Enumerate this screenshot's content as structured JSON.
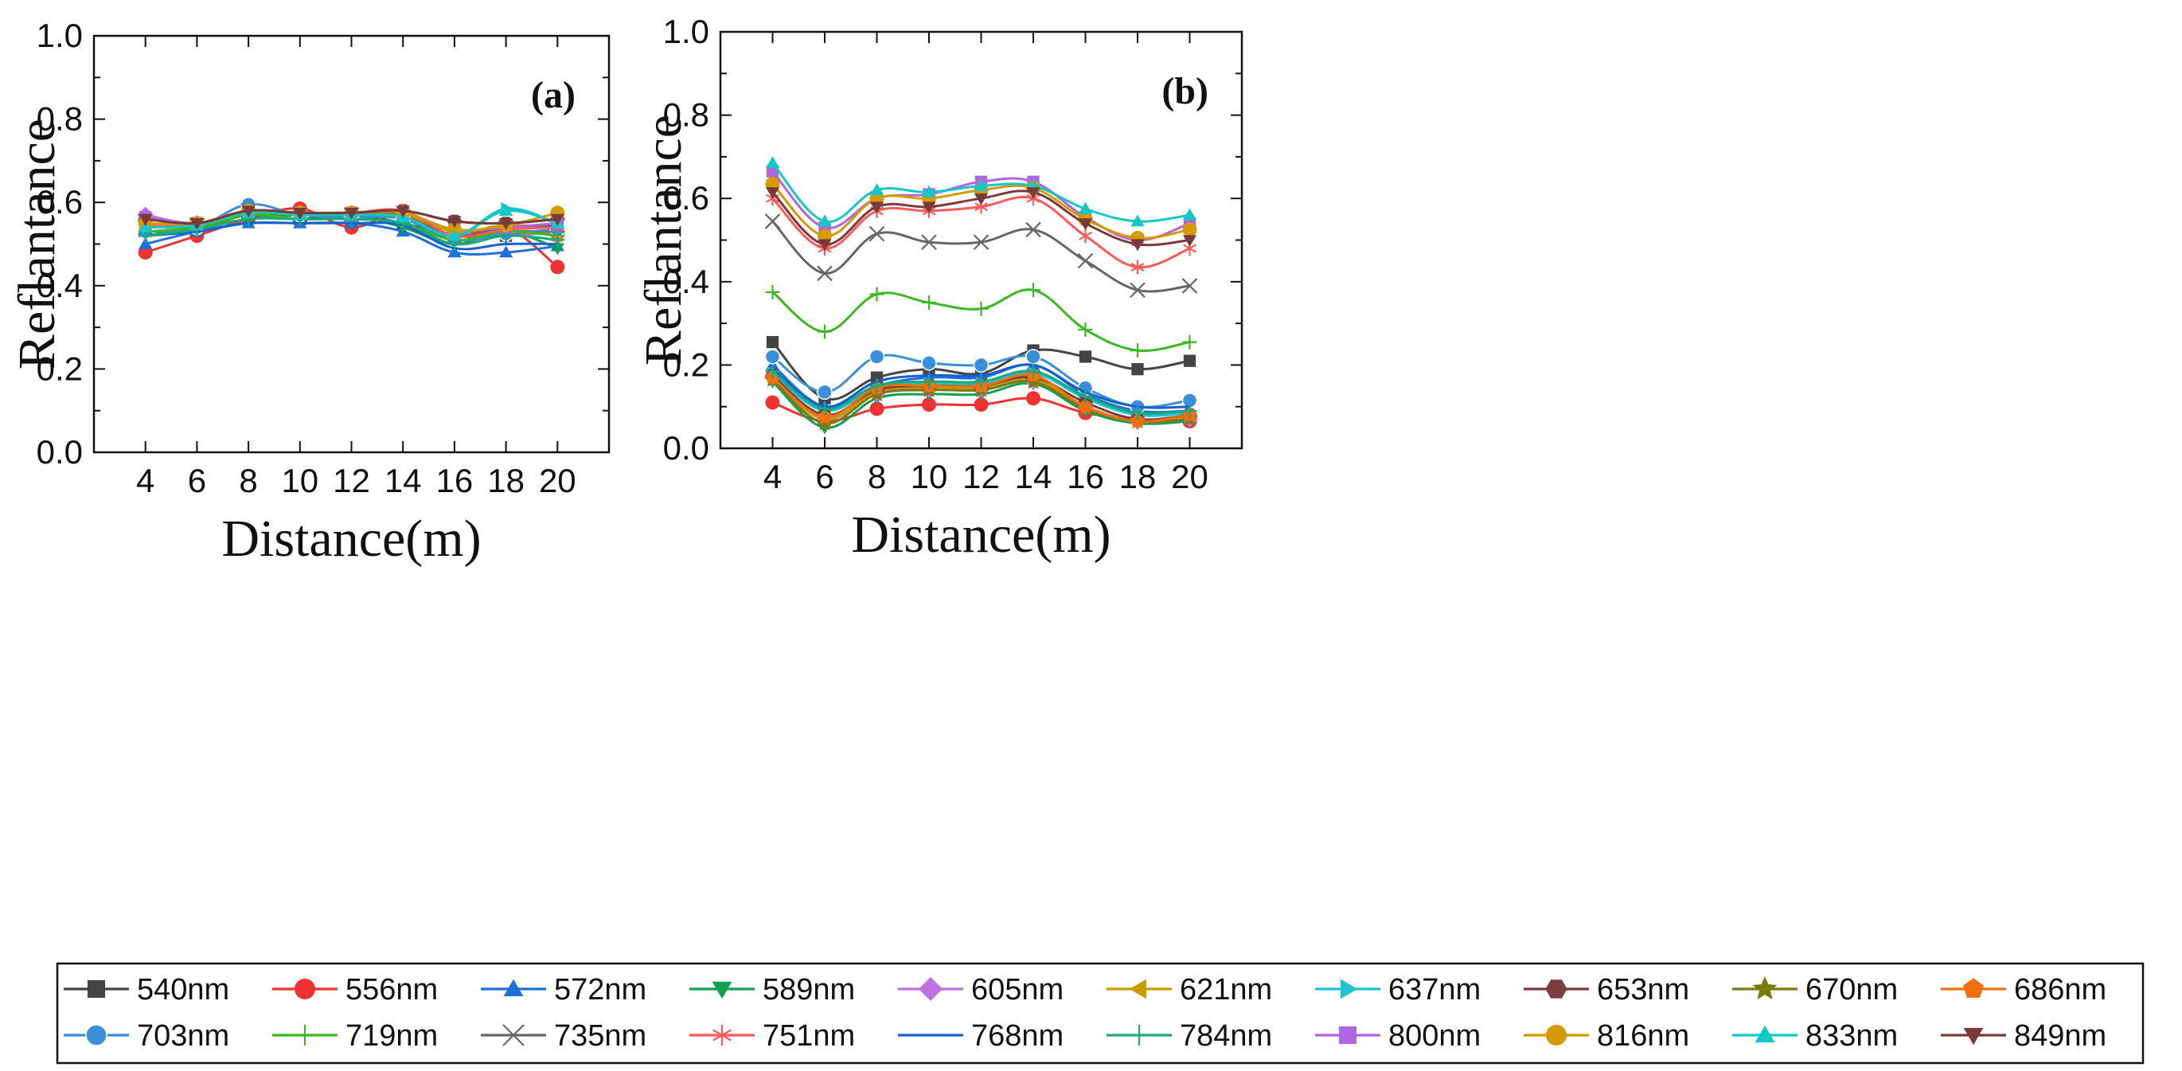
{
  "figure": {
    "legend_entries": [
      "540nm",
      "556nm",
      "572nm",
      "589nm",
      "605nm",
      "621nm",
      "637nm",
      "653nm",
      "670nm",
      "686nm",
      "703nm",
      "719nm",
      "735nm",
      "751nm",
      "768nm",
      "784nm",
      "800nm",
      "816nm",
      "833nm",
      "849nm"
    ]
  },
  "chart_data": [
    {
      "type": "line",
      "panel_label": "(a)",
      "xlabel": "Distance(m)",
      "ylabel": "Reflantance",
      "xlim": [
        2,
        22
      ],
      "ylim": [
        0,
        1
      ],
      "x": [
        4,
        6,
        8,
        10,
        12,
        14,
        16,
        18,
        20
      ],
      "x_ticks": [
        4,
        6,
        8,
        10,
        12,
        14,
        16,
        18,
        20
      ],
      "y_ticks": [
        0.0,
        0.2,
        0.4,
        0.6,
        0.8,
        1.0
      ],
      "y_tick_labels": [
        "0.0",
        "0.2",
        "0.4",
        "0.6",
        "0.8",
        "1.0"
      ],
      "series": [
        {
          "name": "540nm",
          "color": "#444444",
          "marker": "square",
          "values": [
            0.53,
            0.54,
            0.57,
            0.56,
            0.57,
            0.55,
            0.52,
            0.52,
            0.53
          ]
        },
        {
          "name": "556nm",
          "color": "#ef3333",
          "marker": "circle",
          "values": [
            0.48,
            0.52,
            0.56,
            0.585,
            0.54,
            0.575,
            0.52,
            0.54,
            0.445
          ]
        },
        {
          "name": "572nm",
          "color": "#1f6fd8",
          "marker": "triangle-up",
          "values": [
            0.5,
            0.53,
            0.55,
            0.55,
            0.55,
            0.53,
            0.48,
            0.48,
            0.495
          ]
        },
        {
          "name": "589nm",
          "color": "#10a050",
          "marker": "triangle-down",
          "values": [
            0.52,
            0.54,
            0.56,
            0.57,
            0.57,
            0.54,
            0.5,
            0.53,
            0.49
          ]
        },
        {
          "name": "605nm",
          "color": "#c070e0",
          "marker": "diamond",
          "values": [
            0.57,
            0.55,
            0.58,
            0.575,
            0.57,
            0.57,
            0.53,
            0.52,
            0.53
          ]
        },
        {
          "name": "621nm",
          "color": "#c99d00",
          "marker": "triangle-left",
          "values": [
            0.545,
            0.55,
            0.575,
            0.57,
            0.575,
            0.575,
            0.53,
            0.545,
            0.54
          ]
        },
        {
          "name": "637nm",
          "color": "#1ec3d6",
          "marker": "triangle-right",
          "values": [
            0.545,
            0.55,
            0.575,
            0.57,
            0.57,
            0.565,
            0.52,
            0.585,
            0.55
          ]
        },
        {
          "name": "653nm",
          "color": "#7a3e3e",
          "marker": "hexagon",
          "values": [
            0.56,
            0.55,
            0.58,
            0.575,
            0.575,
            0.58,
            0.555,
            0.55,
            0.56
          ]
        },
        {
          "name": "670nm",
          "color": "#7a7a10",
          "marker": "star",
          "values": [
            0.55,
            0.54,
            0.57,
            0.57,
            0.57,
            0.57,
            0.52,
            0.53,
            0.53
          ]
        },
        {
          "name": "686nm",
          "color": "#f07010",
          "marker": "pentagon",
          "values": [
            0.53,
            0.54,
            0.575,
            0.575,
            0.575,
            0.575,
            0.51,
            0.53,
            0.52
          ]
        },
        {
          "name": "703nm",
          "color": "#3a8fd8",
          "marker": "circle-ball",
          "values": [
            0.53,
            0.54,
            0.595,
            0.57,
            0.565,
            0.56,
            0.51,
            0.525,
            0.535
          ]
        },
        {
          "name": "719nm",
          "color": "#3cb820",
          "marker": "plus",
          "values": [
            0.53,
            0.54,
            0.57,
            0.56,
            0.56,
            0.55,
            0.51,
            0.53,
            0.52
          ]
        },
        {
          "name": "735nm",
          "color": "#666666",
          "marker": "x",
          "values": [
            0.54,
            0.545,
            0.58,
            0.57,
            0.57,
            0.565,
            0.52,
            0.54,
            0.545
          ]
        },
        {
          "name": "751nm",
          "color": "#ff5a5a",
          "marker": "asterisk",
          "values": [
            0.545,
            0.55,
            0.58,
            0.575,
            0.575,
            0.58,
            0.52,
            0.535,
            0.54
          ]
        },
        {
          "name": "768nm",
          "color": "#1560d0",
          "marker": "none",
          "values": [
            0.52,
            0.53,
            0.55,
            0.55,
            0.55,
            0.545,
            0.49,
            0.5,
            0.5
          ]
        },
        {
          "name": "784nm",
          "color": "#1aaa7a",
          "marker": "dash-plus",
          "values": [
            0.52,
            0.535,
            0.56,
            0.56,
            0.56,
            0.55,
            0.5,
            0.52,
            0.51
          ]
        },
        {
          "name": "800nm",
          "color": "#b066e0",
          "marker": "square",
          "values": [
            0.565,
            0.55,
            0.58,
            0.575,
            0.575,
            0.575,
            0.535,
            0.54,
            0.55
          ]
        },
        {
          "name": "816nm",
          "color": "#d49a00",
          "marker": "circle",
          "values": [
            0.55,
            0.55,
            0.58,
            0.575,
            0.575,
            0.575,
            0.535,
            0.545,
            0.575
          ]
        },
        {
          "name": "833nm",
          "color": "#15c8c8",
          "marker": "triangle-up",
          "values": [
            0.54,
            0.545,
            0.575,
            0.57,
            0.57,
            0.565,
            0.52,
            0.58,
            0.55
          ]
        },
        {
          "name": "849nm",
          "color": "#7a3a3a",
          "marker": "triangle-down",
          "values": [
            0.56,
            0.55,
            0.58,
            0.575,
            0.575,
            0.58,
            0.555,
            0.55,
            0.56
          ]
        }
      ]
    },
    {
      "type": "line",
      "panel_label": "(b)",
      "xlabel": "Distance(m)",
      "ylabel": "Reflantance",
      "xlim": [
        2,
        22
      ],
      "ylim": [
        0,
        1
      ],
      "x": [
        4,
        6,
        8,
        10,
        12,
        14,
        16,
        18,
        20
      ],
      "x_ticks": [
        4,
        6,
        8,
        10,
        12,
        14,
        16,
        18,
        20
      ],
      "y_ticks": [
        0.0,
        0.2,
        0.4,
        0.6,
        0.8,
        1.0
      ],
      "y_tick_labels": [
        "0.0",
        "0.2",
        "0.4",
        "0.6",
        "0.8",
        "1.0"
      ],
      "series": [
        {
          "name": "540nm",
          "color": "#444444",
          "marker": "square",
          "values": [
            0.255,
            0.12,
            0.17,
            0.19,
            0.18,
            0.235,
            0.22,
            0.19,
            0.21
          ]
        },
        {
          "name": "556nm",
          "color": "#ef3333",
          "marker": "circle",
          "values": [
            0.11,
            0.065,
            0.095,
            0.105,
            0.105,
            0.12,
            0.085,
            0.07,
            0.065
          ]
        },
        {
          "name": "572nm",
          "color": "#1f6fd8",
          "marker": "triangle-up",
          "values": [
            0.2,
            0.1,
            0.15,
            0.17,
            0.17,
            0.2,
            0.13,
            0.09,
            0.09
          ]
        },
        {
          "name": "589nm",
          "color": "#10a050",
          "marker": "triangle-down",
          "values": [
            0.16,
            0.05,
            0.12,
            0.13,
            0.13,
            0.155,
            0.09,
            0.06,
            0.065
          ]
        },
        {
          "name": "605nm",
          "color": "#c070e0",
          "marker": "diamond",
          "values": [
            0.17,
            0.07,
            0.13,
            0.14,
            0.14,
            0.16,
            0.1,
            0.065,
            0.07
          ]
        },
        {
          "name": "621nm",
          "color": "#c99d00",
          "marker": "triangle-left",
          "values": [
            0.165,
            0.07,
            0.135,
            0.145,
            0.145,
            0.165,
            0.1,
            0.065,
            0.075
          ]
        },
        {
          "name": "637nm",
          "color": "#1ec3d6",
          "marker": "triangle-right",
          "values": [
            0.18,
            0.09,
            0.145,
            0.155,
            0.155,
            0.18,
            0.12,
            0.08,
            0.085
          ]
        },
        {
          "name": "653nm",
          "color": "#7a3e3e",
          "marker": "hexagon",
          "values": [
            0.175,
            0.08,
            0.14,
            0.15,
            0.15,
            0.17,
            0.11,
            0.07,
            0.08
          ]
        },
        {
          "name": "670nm",
          "color": "#7a7a10",
          "marker": "star",
          "values": [
            0.165,
            0.06,
            0.13,
            0.14,
            0.14,
            0.16,
            0.095,
            0.065,
            0.07
          ]
        },
        {
          "name": "686nm",
          "color": "#f07010",
          "marker": "pentagon",
          "values": [
            0.17,
            0.075,
            0.145,
            0.15,
            0.15,
            0.175,
            0.1,
            0.065,
            0.08
          ]
        },
        {
          "name": "703nm",
          "color": "#3a8fd8",
          "marker": "circle-ball",
          "values": [
            0.22,
            0.135,
            0.22,
            0.205,
            0.2,
            0.22,
            0.145,
            0.1,
            0.115
          ]
        },
        {
          "name": "719nm",
          "color": "#3cb820",
          "marker": "plus",
          "values": [
            0.375,
            0.28,
            0.37,
            0.35,
            0.335,
            0.38,
            0.285,
            0.235,
            0.255
          ]
        },
        {
          "name": "735nm",
          "color": "#666666",
          "marker": "x",
          "values": [
            0.545,
            0.42,
            0.515,
            0.495,
            0.495,
            0.525,
            0.45,
            0.38,
            0.39
          ]
        },
        {
          "name": "751nm",
          "color": "#ff5a5a",
          "marker": "asterisk",
          "values": [
            0.6,
            0.48,
            0.57,
            0.57,
            0.58,
            0.6,
            0.51,
            0.435,
            0.48
          ]
        },
        {
          "name": "768nm",
          "color": "#1560d0",
          "marker": "none",
          "values": [
            0.19,
            0.1,
            0.16,
            0.175,
            0.175,
            0.2,
            0.135,
            0.1,
            0.1
          ]
        },
        {
          "name": "784nm",
          "color": "#1aaa7a",
          "marker": "dash-plus",
          "values": [
            0.185,
            0.095,
            0.15,
            0.16,
            0.16,
            0.185,
            0.125,
            0.085,
            0.09
          ]
        },
        {
          "name": "800nm",
          "color": "#b066e0",
          "marker": "square",
          "values": [
            0.665,
            0.53,
            0.6,
            0.61,
            0.64,
            0.64,
            0.555,
            0.5,
            0.54
          ]
        },
        {
          "name": "816nm",
          "color": "#d49a00",
          "marker": "circle",
          "values": [
            0.635,
            0.51,
            0.6,
            0.6,
            0.62,
            0.625,
            0.55,
            0.505,
            0.525
          ]
        },
        {
          "name": "833nm",
          "color": "#15c8c8",
          "marker": "triangle-up",
          "values": [
            0.685,
            0.545,
            0.62,
            0.615,
            0.63,
            0.63,
            0.575,
            0.545,
            0.56
          ]
        },
        {
          "name": "849nm",
          "color": "#7a3a3a",
          "marker": "triangle-down",
          "values": [
            0.615,
            0.49,
            0.58,
            0.58,
            0.6,
            0.615,
            0.54,
            0.49,
            0.5
          ]
        }
      ]
    }
  ]
}
